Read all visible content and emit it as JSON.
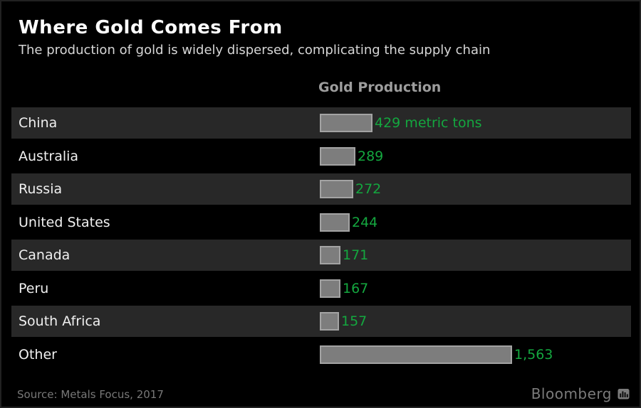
{
  "header": {
    "title": "Where Gold Comes From",
    "subtitle": "The production of gold is widely dispersed, complicating the supply chain"
  },
  "chart_data": {
    "type": "bar",
    "orientation": "horizontal",
    "column_header": "Gold Production",
    "categories": [
      "China",
      "Australia",
      "Russia",
      "United States",
      "Canada",
      "Peru",
      "South Africa",
      "Other"
    ],
    "values": [
      429,
      289,
      272,
      244,
      171,
      167,
      157,
      1563
    ],
    "value_labels": [
      "429 metric tons",
      "289",
      "272",
      "244",
      "171",
      "167",
      "157",
      "1,563"
    ],
    "unit": "metric tons",
    "xlim": [
      0,
      1600
    ],
    "grid": false,
    "legend": false,
    "banded_row_indices": [
      0,
      2,
      4,
      6
    ]
  },
  "footer": {
    "source": "Source: Metals Focus, 2017",
    "brand": "Bloomberg"
  },
  "colors": {
    "background": "#000000",
    "row_band": "#282828",
    "bar_fill": "#7d7d7d",
    "bar_border": "#a3a3a3",
    "value_text": "#14a73f",
    "title_text": "#ffffff",
    "subtitle_text": "#d6d6d6",
    "column_header_text": "#9d9d9d",
    "category_text": "#f0f0f0",
    "source_text": "#787878",
    "brand_text": "#7b7b7b"
  }
}
